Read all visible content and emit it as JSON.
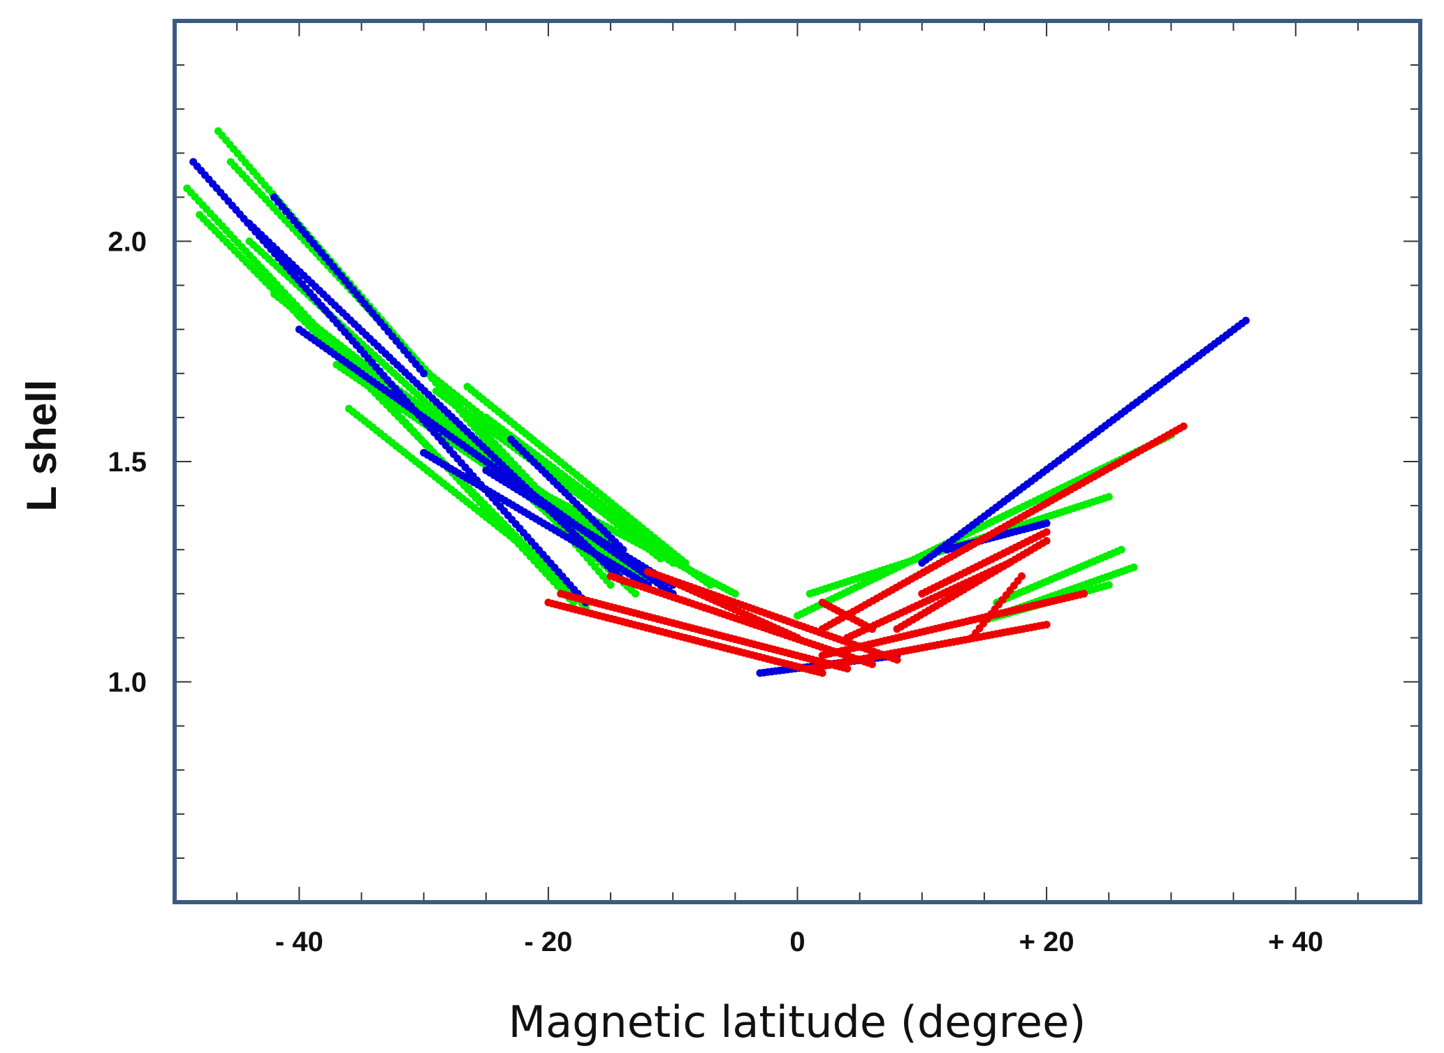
{
  "chart_data": {
    "type": "scatter",
    "title": "",
    "xlabel": "Magnetic latitude (degree)",
    "ylabel": "L shell",
    "xlim": [
      -50,
      50
    ],
    "ylim": [
      0.5,
      2.5
    ],
    "x_ticks": [
      {
        "value": -40,
        "label": "- 40"
      },
      {
        "value": -20,
        "label": "- 20"
      },
      {
        "value": 0,
        "label": "0"
      },
      {
        "value": 20,
        "label": "+ 20"
      },
      {
        "value": 40,
        "label": "+ 40"
      }
    ],
    "y_ticks": [
      {
        "value": 1.0,
        "label": "1.0"
      },
      {
        "value": 1.5,
        "label": "1.5"
      },
      {
        "value": 2.0,
        "label": "2.0"
      }
    ],
    "x_minor_step": 5,
    "y_minor_step": 0.1,
    "grid": false,
    "legend": "none",
    "frame_color": "#3b5a80",
    "series": [
      {
        "color": "#00ee00",
        "tracks": [
          {
            "x0": -49,
            "x1": -18,
            "y0": 2.12,
            "y1": 1.18
          },
          {
            "x0": -48,
            "x1": -17,
            "y0": 2.06,
            "y1": 1.17
          },
          {
            "x0": -46.5,
            "x1": -15,
            "y0": 2.25,
            "y1": 1.22
          },
          {
            "x0": -45.5,
            "x1": -14,
            "y0": 2.18,
            "y1": 1.23
          },
          {
            "x0": -44,
            "x1": -13,
            "y0": 2.0,
            "y1": 1.2
          },
          {
            "x0": -42,
            "x1": -12,
            "y0": 1.88,
            "y1": 1.22
          },
          {
            "x0": -40,
            "x1": -11,
            "y0": 1.83,
            "y1": 1.22
          },
          {
            "x0": -38,
            "x1": -14,
            "y0": 1.78,
            "y1": 1.3
          },
          {
            "x0": -37,
            "x1": -15,
            "y0": 1.72,
            "y1": 1.3
          },
          {
            "x0": -36,
            "x1": -19,
            "y0": 1.62,
            "y1": 1.24
          },
          {
            "x0": -30.5,
            "x1": -11,
            "y0": 1.72,
            "y1": 1.28
          },
          {
            "x0": -29,
            "x1": -10,
            "y0": 1.66,
            "y1": 1.27
          },
          {
            "x0": -26.5,
            "x1": -9,
            "y0": 1.67,
            "y1": 1.27
          },
          {
            "x0": -25,
            "x1": -8,
            "y0": 1.6,
            "y1": 1.24
          },
          {
            "x0": -24,
            "x1": -7,
            "y0": 1.56,
            "y1": 1.22
          },
          {
            "x0": -22,
            "x1": -5,
            "y0": 1.45,
            "y1": 1.2
          },
          {
            "x0": 0,
            "x1": 30,
            "y0": 1.15,
            "y1": 1.56
          },
          {
            "x0": 1,
            "x1": 25,
            "y0": 1.2,
            "y1": 1.42
          },
          {
            "x0": 16,
            "x1": 26,
            "y0": 1.18,
            "y1": 1.3
          },
          {
            "x0": 17,
            "x1": 27,
            "y0": 1.16,
            "y1": 1.26
          },
          {
            "x0": 15,
            "x1": 25,
            "y0": 1.14,
            "y1": 1.22
          }
        ]
      },
      {
        "color": "#0000dd",
        "tracks": [
          {
            "x0": -48.5,
            "x1": -17,
            "y0": 2.18,
            "y1": 1.18
          },
          {
            "x0": -44,
            "x1": -14,
            "y0": 2.04,
            "y1": 1.23
          },
          {
            "x0": -42,
            "x1": -30,
            "y0": 2.1,
            "y1": 1.7
          },
          {
            "x0": -40,
            "x1": -10,
            "y0": 1.8,
            "y1": 1.2
          },
          {
            "x0": -30,
            "x1": -12,
            "y0": 1.52,
            "y1": 1.22
          },
          {
            "x0": -25,
            "x1": -10,
            "y0": 1.48,
            "y1": 1.22
          },
          {
            "x0": -23,
            "x1": -14,
            "y0": 1.55,
            "y1": 1.3
          },
          {
            "x0": 10,
            "x1": 36,
            "y0": 1.27,
            "y1": 1.82
          },
          {
            "x0": 12,
            "x1": 20,
            "y0": 1.3,
            "y1": 1.36
          },
          {
            "x0": -3,
            "x1": 8,
            "y0": 1.02,
            "y1": 1.06
          }
        ]
      },
      {
        "color": "#ee0000",
        "tracks": [
          {
            "x0": -20,
            "x1": 2,
            "y0": 1.18,
            "y1": 1.02
          },
          {
            "x0": -19,
            "x1": 4,
            "y0": 1.2,
            "y1": 1.03
          },
          {
            "x0": -15,
            "x1": 6,
            "y0": 1.24,
            "y1": 1.04
          },
          {
            "x0": -12,
            "x1": 8,
            "y0": 1.25,
            "y1": 1.05
          },
          {
            "x0": -11,
            "x1": 0,
            "y0": 1.24,
            "y1": 1.1
          },
          {
            "x0": 1,
            "x1": 20,
            "y0": 1.03,
            "y1": 1.13
          },
          {
            "x0": 2,
            "x1": 23,
            "y0": 1.06,
            "y1": 1.2
          },
          {
            "x0": 2,
            "x1": 31,
            "y0": 1.12,
            "y1": 1.58
          },
          {
            "x0": 4,
            "x1": 17,
            "y0": 1.1,
            "y1": 1.27
          },
          {
            "x0": 8,
            "x1": 20,
            "y0": 1.12,
            "y1": 1.32
          },
          {
            "x0": 10,
            "x1": 20,
            "y0": 1.2,
            "y1": 1.34
          },
          {
            "x0": 2,
            "x1": 6,
            "y0": 1.18,
            "y1": 1.12
          },
          {
            "x0": 14,
            "x1": 18,
            "y0": 1.1,
            "y1": 1.24
          }
        ]
      }
    ]
  }
}
